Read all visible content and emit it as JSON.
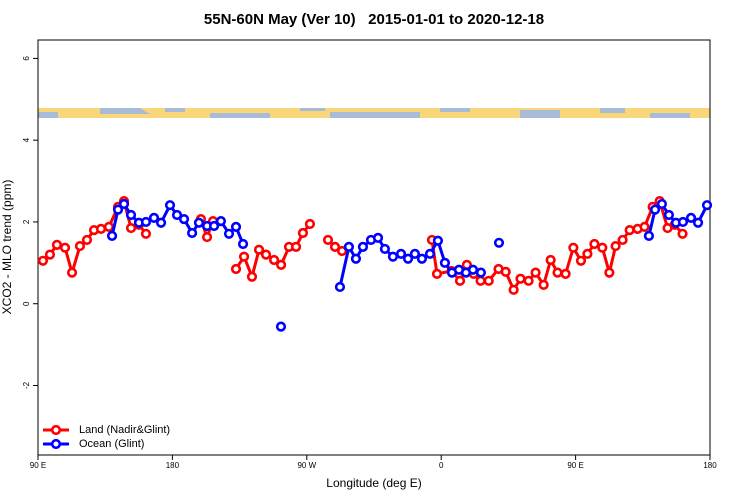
{
  "chart_data": {
    "type": "line",
    "title": "55N-60N May (Ver 10)   2015-01-01 to 2020-12-18",
    "x_label": "Longitude (deg E)",
    "y_label": "XCO2 - MLO trend (ppm)",
    "xlim": [
      90,
      540
    ],
    "ylim": [
      -3.7,
      6.45
    ],
    "xticks": [
      {
        "value": 90,
        "label": "90 E"
      },
      180,
      {
        "value": 270,
        "label": "90 W"
      },
      {
        "value": 360,
        "label": "0"
      },
      {
        "value": 450,
        "label": "90 E"
      },
      {
        "value": 540,
        "label": "180"
      }
    ],
    "yticks": [
      -2,
      0,
      2,
      4,
      6
    ],
    "legend": "bottom-left",
    "series": [
      {
        "name": "Land (Nadir&Glint)",
        "color": "#ff0000",
        "x": [
          93.3,
          98.0,
          102.7,
          108.1,
          112.8,
          118.1,
          122.8,
          127.5,
          132.2,
          137.5,
          143.6,
          147.6,
          152.3,
          157.6,
          162.3,
          180,
          199.1,
          203.2,
          207.2,
          215,
          222.6,
          228.0,
          233.3,
          238.0,
          242.7,
          248.1,
          252.8,
          258.1,
          262.8,
          267.4,
          272.1,
          278,
          284.2,
          288.9,
          293.6,
          320,
          353.8,
          357.2,
          366.9,
          372.6,
          377.2,
          381.8,
          386.4,
          391.8,
          398.4,
          403.2,
          408.5,
          413.1,
          418.5,
          423.2,
          428.6,
          433.3,
          437.9,
          443.3,
          448.5,
          453.6,
          457.9,
          462.6,
          467.9,
          472.6,
          476.8,
          481.5,
          486.2,
          491.5,
          496.2,
          501.6,
          506.3,
          511.6,
          516.3,
          521.6
        ],
        "values": [
          1.05,
          1.2,
          1.44,
          1.37,
          0.76,
          1.41,
          1.56,
          1.8,
          1.83,
          1.88,
          2.37,
          2.51,
          1.85,
          1.93,
          1.71,
          null,
          2.07,
          1.63,
          2.02,
          null,
          0.85,
          1.15,
          0.66,
          1.32,
          1.2,
          1.07,
          0.95,
          1.39,
          1.39,
          1.73,
          1.95,
          null,
          1.56,
          1.39,
          1.29,
          null,
          1.56,
          0.73,
          0.8,
          0.56,
          0.95,
          0.73,
          0.56,
          0.56,
          0.85,
          0.78,
          0.34,
          0.61,
          0.56,
          0.76,
          0.46,
          1.07,
          0.76,
          0.73,
          1.37,
          1.05,
          1.22,
          1.46,
          1.37,
          0.76,
          1.41,
          1.56,
          1.8,
          1.83,
          1.88,
          2.37,
          2.51,
          1.85,
          1.93,
          1.71
        ]
      },
      {
        "name": "Ocean (Glint)",
        "color": "#0000ff",
        "x": [
          139.6,
          143.6,
          147.6,
          152.3,
          157.6,
          162.3,
          167.7,
          172.4,
          178.4,
          183.1,
          187.8,
          193.2,
          197.8,
          203.2,
          207.9,
          212.5,
          217.9,
          222.6,
          227.3,
          240,
          252.7,
          270,
          292.2,
          298.2,
          302.9,
          307.6,
          313.0,
          317.7,
          322.3,
          327.7,
          333.1,
          337.8,
          342.4,
          347.1,
          352.5,
          357.8,
          362.5,
          367.2,
          371.9,
          376.6,
          381.3,
          386.6,
          392,
          398.7,
          450,
          499.1,
          503.2,
          507.8,
          512.5,
          517.2,
          521.9,
          527.3,
          532.0,
          538.0
        ],
        "values": [
          1.66,
          2.3,
          2.44,
          2.17,
          1.98,
          2.0,
          2.1,
          1.98,
          2.41,
          2.17,
          2.07,
          1.73,
          1.98,
          1.9,
          1.9,
          2.02,
          1.71,
          1.88,
          1.46,
          null,
          -0.56,
          null,
          0.41,
          1.39,
          1.1,
          1.39,
          1.56,
          1.61,
          1.34,
          1.15,
          1.22,
          1.1,
          1.22,
          1.1,
          1.22,
          1.54,
          1.0,
          0.76,
          0.83,
          0.76,
          0.83,
          0.76,
          null,
          1.49,
          null,
          1.66,
          2.3,
          2.44,
          2.17,
          1.98,
          2.0,
          2.1,
          1.98,
          2.41
        ]
      }
    ]
  }
}
